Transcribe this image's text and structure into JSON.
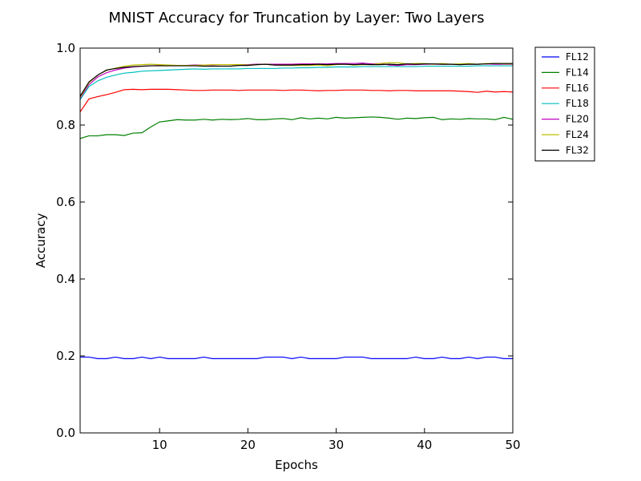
{
  "chart_data": {
    "type": "line",
    "title": "MNIST Accuracy for Truncation by Layer: Two Layers",
    "xlabel": "Epochs",
    "ylabel": "Accuracy",
    "xlim": [
      1,
      50
    ],
    "ylim": [
      0.0,
      1.0
    ],
    "xticks": [
      10,
      20,
      30,
      40,
      50
    ],
    "yticks": [
      0.0,
      0.2,
      0.4,
      0.6,
      0.8,
      1.0
    ],
    "grid": false,
    "legend_position": "outside-top-right",
    "x": [
      1,
      2,
      3,
      4,
      5,
      6,
      7,
      8,
      9,
      10,
      11,
      12,
      13,
      14,
      15,
      16,
      17,
      18,
      19,
      20,
      21,
      22,
      23,
      24,
      25,
      26,
      27,
      28,
      29,
      30,
      31,
      32,
      33,
      34,
      35,
      36,
      37,
      38,
      39,
      40,
      41,
      42,
      43,
      44,
      45,
      46,
      47,
      48,
      49,
      50
    ],
    "series": [
      {
        "name": "FL12",
        "color": "#0000ff",
        "values": [
          0.197,
          0.197,
          0.193,
          0.193,
          0.197,
          0.193,
          0.193,
          0.197,
          0.193,
          0.197,
          0.193,
          0.193,
          0.193,
          0.193,
          0.197,
          0.193,
          0.193,
          0.193,
          0.193,
          0.193,
          0.193,
          0.197,
          0.197,
          0.197,
          0.193,
          0.197,
          0.193,
          0.193,
          0.193,
          0.193,
          0.197,
          0.197,
          0.197,
          0.193,
          0.193,
          0.193,
          0.193,
          0.193,
          0.197,
          0.193,
          0.193,
          0.197,
          0.193,
          0.193,
          0.197,
          0.193,
          0.197,
          0.197,
          0.193,
          0.193
        ]
      },
      {
        "name": "FL14",
        "color": "#008000",
        "values": [
          0.765,
          0.772,
          0.772,
          0.775,
          0.775,
          0.773,
          0.779,
          0.78,
          0.795,
          0.808,
          0.811,
          0.814,
          0.813,
          0.813,
          0.815,
          0.813,
          0.815,
          0.814,
          0.815,
          0.817,
          0.814,
          0.814,
          0.816,
          0.817,
          0.814,
          0.819,
          0.816,
          0.818,
          0.816,
          0.82,
          0.818,
          0.819,
          0.82,
          0.821,
          0.82,
          0.818,
          0.815,
          0.818,
          0.817,
          0.819,
          0.82,
          0.814,
          0.816,
          0.815,
          0.817,
          0.816,
          0.816,
          0.814,
          0.82,
          0.815
        ]
      },
      {
        "name": "FL16",
        "color": "#ff0000",
        "values": [
          0.834,
          0.868,
          0.874,
          0.879,
          0.885,
          0.892,
          0.893,
          0.892,
          0.893,
          0.893,
          0.893,
          0.892,
          0.891,
          0.89,
          0.89,
          0.891,
          0.891,
          0.891,
          0.89,
          0.891,
          0.891,
          0.891,
          0.891,
          0.89,
          0.891,
          0.891,
          0.89,
          0.889,
          0.89,
          0.89,
          0.891,
          0.891,
          0.891,
          0.89,
          0.89,
          0.889,
          0.89,
          0.89,
          0.889,
          0.889,
          0.889,
          0.889,
          0.889,
          0.888,
          0.887,
          0.885,
          0.888,
          0.886,
          0.887,
          0.886
        ]
      },
      {
        "name": "FL18",
        "color": "#00bfbf",
        "values": [
          0.866,
          0.9,
          0.915,
          0.924,
          0.93,
          0.935,
          0.937,
          0.94,
          0.941,
          0.942,
          0.943,
          0.944,
          0.945,
          0.946,
          0.945,
          0.946,
          0.946,
          0.946,
          0.946,
          0.947,
          0.947,
          0.947,
          0.947,
          0.948,
          0.948,
          0.949,
          0.949,
          0.95,
          0.95,
          0.951,
          0.951,
          0.951,
          0.952,
          0.952,
          0.952,
          0.952,
          0.952,
          0.952,
          0.952,
          0.953,
          0.953,
          0.953,
          0.953,
          0.953,
          0.953,
          0.954,
          0.954,
          0.954,
          0.954,
          0.954
        ]
      },
      {
        "name": "FL20",
        "color": "#bf00bf",
        "values": [
          0.87,
          0.905,
          0.925,
          0.936,
          0.943,
          0.948,
          0.951,
          0.953,
          0.954,
          0.955,
          0.955,
          0.955,
          0.955,
          0.956,
          0.956,
          0.956,
          0.957,
          0.957,
          0.957,
          0.957,
          0.958,
          0.958,
          0.958,
          0.958,
          0.958,
          0.959,
          0.959,
          0.959,
          0.959,
          0.96,
          0.96,
          0.96,
          0.961,
          0.959,
          0.96,
          0.956,
          0.955,
          0.957,
          0.957,
          0.958,
          0.958,
          0.958,
          0.958,
          0.958,
          0.958,
          0.958,
          0.959,
          0.958,
          0.958,
          0.958
        ]
      },
      {
        "name": "FL24",
        "color": "#bfbf00",
        "values": [
          0.872,
          0.91,
          0.93,
          0.942,
          0.948,
          0.953,
          0.956,
          0.957,
          0.958,
          0.957,
          0.956,
          0.955,
          0.955,
          0.955,
          0.956,
          0.957,
          0.957,
          0.957,
          0.957,
          0.956,
          0.957,
          0.958,
          0.956,
          0.955,
          0.955,
          0.955,
          0.955,
          0.956,
          0.954,
          0.957,
          0.958,
          0.956,
          0.957,
          0.957,
          0.96,
          0.962,
          0.962,
          0.959,
          0.96,
          0.96,
          0.958,
          0.96,
          0.958,
          0.959,
          0.96,
          0.958,
          0.96,
          0.96,
          0.959,
          0.959
        ]
      },
      {
        "name": "FL32",
        "color": "#000000",
        "values": [
          0.875,
          0.912,
          0.93,
          0.943,
          0.947,
          0.95,
          0.952,
          0.953,
          0.954,
          0.954,
          0.954,
          0.954,
          0.954,
          0.954,
          0.953,
          0.953,
          0.953,
          0.953,
          0.955,
          0.955,
          0.957,
          0.958,
          0.956,
          0.956,
          0.956,
          0.957,
          0.957,
          0.958,
          0.957,
          0.958,
          0.958,
          0.957,
          0.958,
          0.957,
          0.957,
          0.958,
          0.957,
          0.959,
          0.958,
          0.959,
          0.959,
          0.958,
          0.958,
          0.957,
          0.958,
          0.958,
          0.959,
          0.96,
          0.96,
          0.96
        ]
      }
    ]
  }
}
